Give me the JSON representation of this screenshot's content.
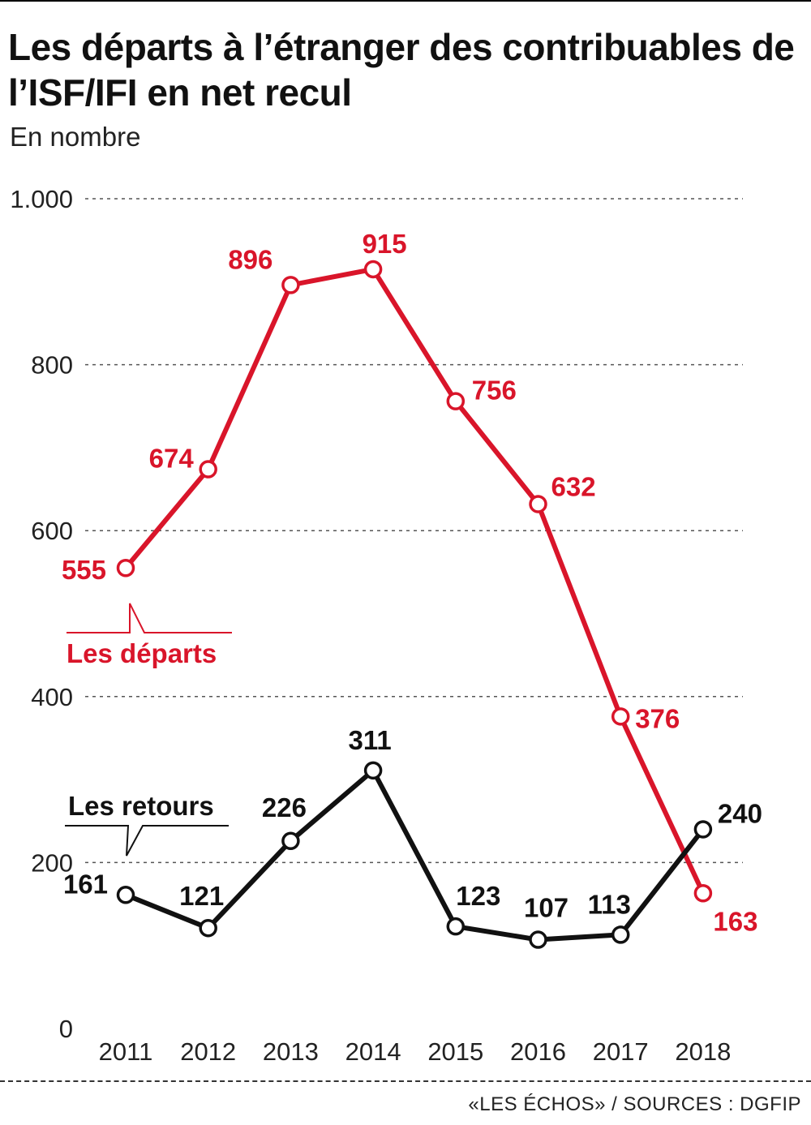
{
  "title": "Les départs à l’étranger des contribuables de l’ISF/IFI en net recul",
  "subtitle": "En nombre",
  "source": "«LES ÉCHOS» / SOURCES : DGFIP",
  "chart_data": {
    "type": "line",
    "categories": [
      "2011",
      "2012",
      "2013",
      "2014",
      "2015",
      "2016",
      "2017",
      "2018"
    ],
    "series": [
      {
        "name": "Les départs",
        "values": [
          555,
          674,
          896,
          915,
          756,
          632,
          376,
          163
        ],
        "value_labels": [
          "555",
          "674",
          "896",
          "915",
          "756",
          "632",
          "376",
          "163"
        ],
        "color": "#d9152a"
      },
      {
        "name": "Les retours",
        "values": [
          161,
          121,
          226,
          311,
          123,
          107,
          113,
          240
        ],
        "value_labels": [
          "161",
          "121",
          "226",
          "311",
          "123",
          "107",
          "113",
          "240"
        ],
        "color": "#111111"
      }
    ],
    "yticks": [
      0,
      200,
      400,
      600,
      800,
      1000
    ],
    "ytick_labels": [
      "0",
      "200",
      "400",
      "600",
      "800",
      "1.000"
    ],
    "ylim": [
      0,
      1000
    ],
    "grid": true,
    "xlabel": "",
    "ylabel": ""
  }
}
